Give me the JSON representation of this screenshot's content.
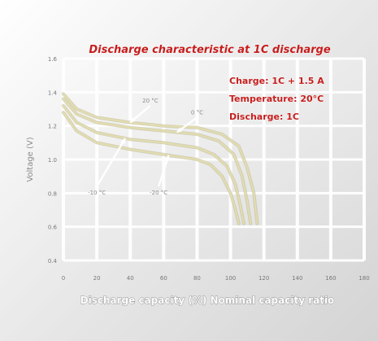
{
  "chart_data": {
    "type": "line",
    "title": "Discharge characteristic at 1C discharge",
    "info": [
      "Charge: 1C + 1.5 A",
      "Temperature: 20°C",
      "Discharge: 1C"
    ],
    "xlabel": "Discharge capacity (%) Nominal capacity ratio",
    "ylabel": "Voltage (V)",
    "xlim": [
      0,
      180
    ],
    "ylim": [
      0.4,
      1.6
    ],
    "x_ticks": [
      0,
      20,
      40,
      60,
      80,
      100,
      120,
      140,
      160,
      180
    ],
    "y_ticks": [
      0.4,
      0.6,
      0.8,
      1.0,
      1.2,
      1.4,
      1.6
    ],
    "y_tick_labels": [
      "0.4",
      "0.6",
      "0.8",
      "1.0",
      "1.2",
      "1.4",
      "1.6"
    ],
    "grid": true,
    "series": [
      {
        "name": "20 °C",
        "points": [
          [
            0,
            1.39
          ],
          [
            8,
            1.3
          ],
          [
            20,
            1.25
          ],
          [
            40,
            1.22
          ],
          [
            60,
            1.2
          ],
          [
            80,
            1.19
          ],
          [
            95,
            1.15
          ],
          [
            105,
            1.08
          ],
          [
            110,
            0.95
          ],
          [
            114,
            0.8
          ],
          [
            116,
            0.62
          ]
        ]
      },
      {
        "name": "0 °C",
        "points": [
          [
            0,
            1.36
          ],
          [
            8,
            1.27
          ],
          [
            20,
            1.22
          ],
          [
            40,
            1.19
          ],
          [
            60,
            1.17
          ],
          [
            80,
            1.15
          ],
          [
            93,
            1.11
          ],
          [
            102,
            1.03
          ],
          [
            107,
            0.9
          ],
          [
            110,
            0.75
          ],
          [
            112,
            0.62
          ]
        ]
      },
      {
        "name": "-10 °C",
        "points": [
          [
            0,
            1.32
          ],
          [
            8,
            1.22
          ],
          [
            20,
            1.16
          ],
          [
            40,
            1.12
          ],
          [
            60,
            1.1
          ],
          [
            80,
            1.07
          ],
          [
            90,
            1.03
          ],
          [
            98,
            0.96
          ],
          [
            103,
            0.85
          ],
          [
            106,
            0.72
          ],
          [
            108,
            0.62
          ]
        ]
      },
      {
        "name": "-20 °C",
        "points": [
          [
            0,
            1.28
          ],
          [
            8,
            1.17
          ],
          [
            20,
            1.1
          ],
          [
            40,
            1.06
          ],
          [
            60,
            1.03
          ],
          [
            80,
            1.0
          ],
          [
            88,
            0.97
          ],
          [
            95,
            0.9
          ],
          [
            100,
            0.8
          ],
          [
            103,
            0.7
          ],
          [
            105,
            0.62
          ]
        ]
      }
    ],
    "annotations": [
      {
        "text": "20 °C",
        "series": 0,
        "at_x": 40,
        "label_x": 52,
        "label_y": 1.32
      },
      {
        "text": "0 °C",
        "series": 1,
        "at_x": 68,
        "label_x": 80,
        "label_y": 1.25
      },
      {
        "text": "-10 °C",
        "series": 2,
        "at_x": 37,
        "label_x": 20,
        "label_y": 0.84
      },
      {
        "text": "-20 °C",
        "series": 3,
        "at_x": 63,
        "label_x": 57,
        "label_y": 0.84
      }
    ],
    "colors": {
      "curve": "#e2dcae",
      "curve_shadow": "#b8b48a",
      "grid": "#ffffff",
      "text_red": "#c61d1d"
    }
  }
}
